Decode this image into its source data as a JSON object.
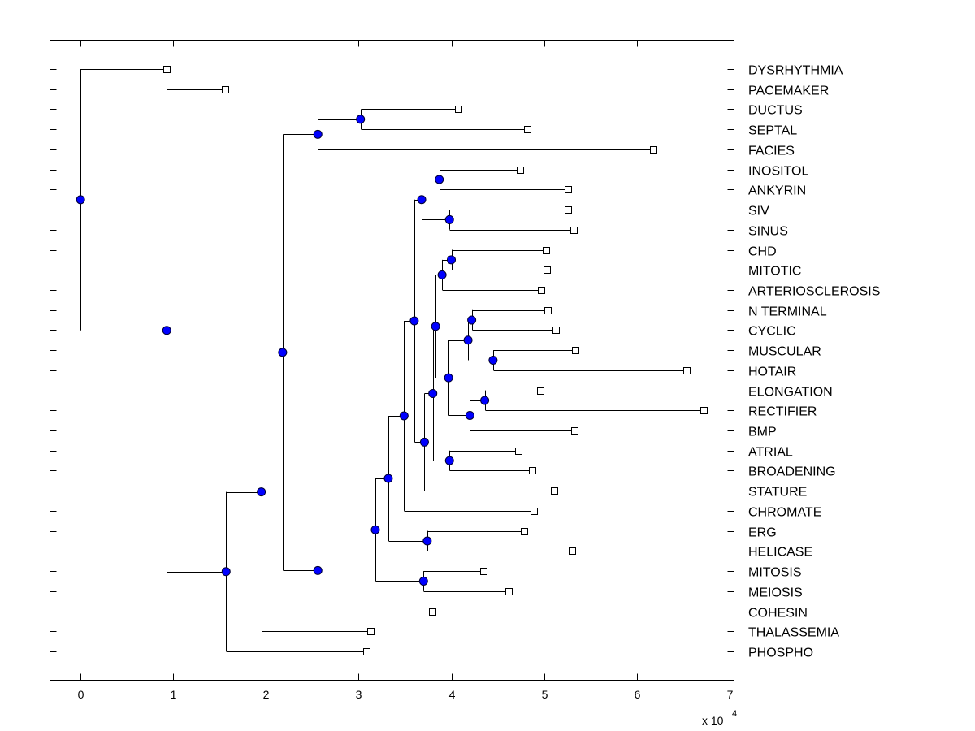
{
  "chart_data": {
    "type": "dendrogram",
    "title": "",
    "xlabel": "",
    "ylabel": "",
    "x_multiplier_label": "x 10",
    "x_multiplier_exponent": "4",
    "xlim": [
      -0.33,
      7.05
    ],
    "xticks": [
      "0",
      "1",
      "2",
      "3",
      "4",
      "5",
      "6",
      "7"
    ],
    "xtick_values": [
      0,
      1,
      2,
      3,
      4,
      5,
      6,
      7
    ],
    "grid": false,
    "leaf_color": "#ffffff",
    "node_color": "#0000ff",
    "leaves": [
      "DYSRHYTHMIA",
      "PACEMAKER",
      "DUCTUS",
      "SEPTAL",
      "FACIES",
      "INOSITOL",
      "ANKYRIN",
      "SIV",
      "SINUS",
      "CHD",
      "MITOTIC",
      "ARTERIOSCLEROSIS",
      "N TERMINAL",
      "CYCLIC",
      "MUSCULAR",
      "HOTAIR",
      "ELONGATION",
      "RECTIFIER",
      "BMP",
      "ATRIAL",
      "BROADENING",
      "STATURE",
      "CHROMATE",
      "ERG",
      "HELICASE",
      "MITOSIS",
      "MEIOSIS",
      "COHESIN",
      "THALASSEMIA",
      "PHOSPHO"
    ],
    "leaf_x": {
      "DYSRHYTHMIA": 0.93,
      "PACEMAKER": 1.56,
      "DUCTUS": 4.07,
      "SEPTAL": 4.82,
      "FACIES": 6.18,
      "INOSITOL": 4.74,
      "ANKYRIN": 5.26,
      "SIV": 5.26,
      "SINUS": 5.32,
      "CHD": 5.02,
      "MITOTIC": 5.03,
      "ARTERIOSCLEROSIS": 4.97,
      "N TERMINAL": 5.04,
      "CYCLIC": 5.13,
      "MUSCULAR": 5.34,
      "HOTAIR": 6.54,
      "ELONGATION": 4.96,
      "RECTIFIER": 6.72,
      "BMP": 5.33,
      "ATRIAL": 4.72,
      "BROADENING": 4.87,
      "STATURE": 5.11,
      "CHROMATE": 4.89,
      "ERG": 4.78,
      "HELICASE": 5.3,
      "MITOSIS": 4.35,
      "MEIOSIS": 4.62,
      "COHESIN": 3.79,
      "THALASSEMIA": 3.13,
      "PHOSPHO": 3.08
    },
    "nodes": {
      "root": {
        "x": 0.0,
        "children": [
          "DYSRHYTHMIA",
          "n1"
        ]
      },
      "n1": {
        "x": 0.93,
        "children": [
          "PACEMAKER",
          "n2"
        ]
      },
      "n2": {
        "x": 1.57,
        "children": [
          "n3",
          "PHOSPHO"
        ]
      },
      "n3": {
        "x": 1.95,
        "children": [
          "n4",
          "THALASSEMIA"
        ]
      },
      "n4": {
        "x": 2.18,
        "children": [
          "n5",
          "n6"
        ]
      },
      "n5": {
        "x": 2.56,
        "children": [
          "n7",
          "FACIES"
        ]
      },
      "n7": {
        "x": 3.02,
        "children": [
          "DUCTUS",
          "SEPTAL"
        ]
      },
      "n6": {
        "x": 2.56,
        "children": [
          "n8",
          "COHESIN"
        ]
      },
      "n8": {
        "x": 3.18,
        "children": [
          "n9",
          "n10"
        ]
      },
      "n10": {
        "x": 3.7,
        "children": [
          "MITOSIS",
          "MEIOSIS"
        ]
      },
      "n9": {
        "x": 3.32,
        "children": [
          "n11",
          "n12"
        ]
      },
      "n12": {
        "x": 3.74,
        "children": [
          "ERG",
          "HELICASE"
        ]
      },
      "n11": {
        "x": 3.49,
        "children": [
          "n13",
          "CHROMATE"
        ]
      },
      "n13": {
        "x": 3.6,
        "children": [
          "n14",
          "n15"
        ]
      },
      "n14": {
        "x": 3.68,
        "children": [
          "n16",
          "n17"
        ]
      },
      "n16": {
        "x": 3.87,
        "children": [
          "INOSITOL",
          "ANKYRIN"
        ]
      },
      "n17": {
        "x": 3.98,
        "children": [
          "SIV",
          "SINUS"
        ]
      },
      "n15": {
        "x": 3.71,
        "children": [
          "n18",
          "STATURE"
        ]
      },
      "n18": {
        "x": 3.8,
        "children": [
          "n19",
          "n20"
        ]
      },
      "n20": {
        "x": 3.98,
        "children": [
          "ATRIAL",
          "BROADENING"
        ]
      },
      "n19": {
        "x": 3.83,
        "children": [
          "n21",
          "n22"
        ]
      },
      "n21": {
        "x": 3.9,
        "children": [
          "n23",
          "ARTERIOSCLEROSIS"
        ]
      },
      "n23": {
        "x": 4.0,
        "children": [
          "CHD",
          "MITOTIC"
        ]
      },
      "n22": {
        "x": 3.97,
        "children": [
          "n24",
          "n25"
        ]
      },
      "n24": {
        "x": 4.18,
        "children": [
          "n26",
          "n27"
        ]
      },
      "n26": {
        "x": 4.22,
        "children": [
          "N TERMINAL",
          "CYCLIC"
        ]
      },
      "n27": {
        "x": 4.45,
        "children": [
          "MUSCULAR",
          "HOTAIR"
        ]
      },
      "n25": {
        "x": 4.2,
        "children": [
          "n28",
          "BMP"
        ]
      },
      "n28": {
        "x": 4.36,
        "children": [
          "ELONGATION",
          "RECTIFIER"
        ]
      }
    }
  }
}
